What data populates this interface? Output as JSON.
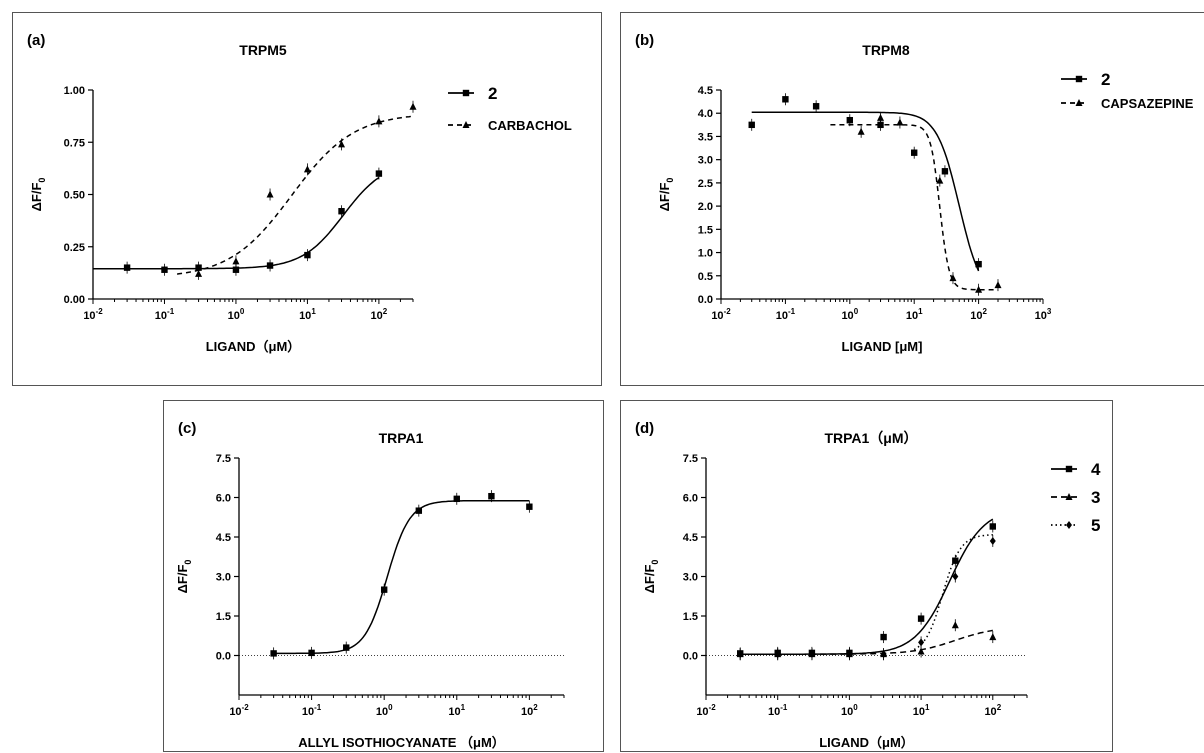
{
  "chart_data": [
    {
      "type": "scatter",
      "panel_label": "(a)",
      "title": "TRPM5",
      "xlabel": "LIGAND（μM）",
      "ylabel": "ΔF/F0",
      "xscale": "log",
      "xlim": [
        0.01,
        300
      ],
      "ylim": [
        0,
        1.0
      ],
      "x_ticks": [
        "10-2",
        "10-1",
        "100",
        "101",
        "102"
      ],
      "y_ticks": [
        "0.00",
        "0.25",
        "0.50",
        "0.75",
        "1.00"
      ],
      "legend_position": "right",
      "series": [
        {
          "name": "2",
          "marker": "square",
          "line": "solid",
          "x": [
            0.03,
            0.1,
            0.3,
            1,
            3,
            10,
            30,
            100
          ],
          "y": [
            0.15,
            0.14,
            0.15,
            0.14,
            0.16,
            0.21,
            0.42,
            0.6
          ]
        },
        {
          "name": "CARBACHOL",
          "marker": "triangle",
          "line": "dashed",
          "x": [
            0.3,
            1,
            3,
            10,
            30,
            100,
            300
          ],
          "y": [
            0.12,
            0.18,
            0.5,
            0.62,
            0.74,
            0.85,
            0.92
          ]
        }
      ]
    },
    {
      "type": "scatter",
      "panel_label": "(b)",
      "title": "TRPM8",
      "xlabel": "LIGAND [μM]",
      "ylabel": "ΔF/F0",
      "xscale": "log",
      "xlim": [
        0.01,
        1000
      ],
      "ylim": [
        0,
        4.5
      ],
      "x_ticks": [
        "10-2",
        "10-1",
        "100",
        "101",
        "102",
        "103"
      ],
      "y_ticks": [
        "0.0",
        "0.5",
        "1.0",
        "1.5",
        "2.0",
        "2.5",
        "3.0",
        "3.5",
        "4.0",
        "4.5"
      ],
      "legend_position": "right",
      "series": [
        {
          "name": "2",
          "marker": "square",
          "line": "solid",
          "x": [
            0.03,
            0.1,
            0.3,
            1,
            3,
            10,
            30,
            100
          ],
          "y": [
            3.75,
            4.3,
            4.15,
            3.85,
            3.75,
            3.15,
            2.75,
            0.75
          ]
        },
        {
          "name": "CAPSAZEPINE",
          "marker": "triangle",
          "line": "dashed",
          "x": [
            1.5,
            3,
            6,
            25,
            40,
            100,
            200
          ],
          "y": [
            3.6,
            3.9,
            3.8,
            2.55,
            0.45,
            0.2,
            0.3
          ]
        }
      ]
    },
    {
      "type": "scatter",
      "panel_label": "(c)",
      "title": "TRPA1",
      "xlabel": "ALLYL ISOTHIOCYANATE （μM）",
      "ylabel": "ΔF/F0",
      "xscale": "log",
      "xlim": [
        0.01,
        300
      ],
      "ylim": [
        -1.5,
        7.5
      ],
      "x_ticks": [
        "10-2",
        "10-1",
        "100",
        "101",
        "102"
      ],
      "y_ticks": [
        "0.0",
        "1.5",
        "3.0",
        "4.5",
        "6.0",
        "7.5"
      ],
      "series": [
        {
          "name": "",
          "marker": "square",
          "line": "solid",
          "x": [
            0.03,
            0.1,
            0.3,
            1,
            3,
            10,
            30,
            100
          ],
          "y": [
            0.08,
            0.1,
            0.3,
            2.5,
            5.5,
            5.95,
            6.05,
            5.65
          ]
        }
      ]
    },
    {
      "type": "scatter",
      "panel_label": "(d)",
      "title": "TRPA1（μM）",
      "xlabel": "LIGAND（μM）",
      "ylabel": "ΔF/F0",
      "xscale": "log",
      "xlim": [
        0.01,
        300
      ],
      "ylim": [
        -1.5,
        7.5
      ],
      "x_ticks": [
        "10-2",
        "10-1",
        "100",
        "101",
        "102"
      ],
      "y_ticks": [
        "0.0",
        "1.5",
        "3.0",
        "4.5",
        "6.0",
        "7.5"
      ],
      "legend_position": "right",
      "series": [
        {
          "name": "4",
          "marker": "square",
          "line": "solid",
          "x": [
            0.03,
            0.1,
            0.3,
            1,
            3,
            10,
            30,
            100
          ],
          "y": [
            0.08,
            0.1,
            0.1,
            0.1,
            0.7,
            1.4,
            3.6,
            4.9
          ]
        },
        {
          "name": "3",
          "marker": "triangle",
          "line": "dashed",
          "x": [
            0.03,
            0.1,
            0.3,
            1,
            3,
            10,
            30,
            100
          ],
          "y": [
            0.05,
            0.05,
            0.05,
            0.05,
            0.05,
            0.15,
            1.15,
            0.7
          ]
        },
        {
          "name": "5",
          "marker": "diamond",
          "line": "dotted",
          "x": [
            0.03,
            0.1,
            0.3,
            1,
            3,
            10,
            30,
            100
          ],
          "y": [
            0.05,
            0.05,
            0.05,
            0.05,
            0.05,
            0.5,
            3.0,
            4.35
          ]
        }
      ]
    }
  ]
}
